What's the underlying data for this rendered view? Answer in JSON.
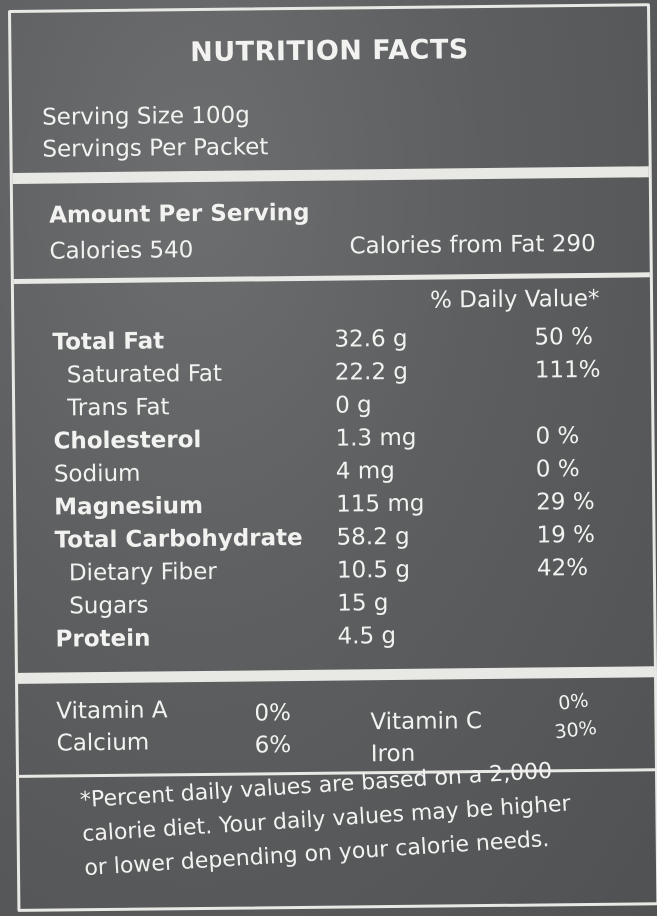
{
  "label": {
    "title": "NUTRITION FACTS",
    "serving_size": "Serving Size 100g",
    "servings_per_packet": "Servings Per Packet",
    "amount_per_serving": "Amount Per Serving",
    "calories": "Calories 540",
    "calories_from_fat": "Calories from Fat 290",
    "daily_value_header": "% Daily Value*",
    "nutrients": [
      {
        "name": "Total Fat",
        "amount": "32.6 g",
        "dv": "50 %"
      },
      {
        "name": "Saturated Fat",
        "amount": "22.2 g",
        "dv": "111%"
      },
      {
        "name": "Trans Fat",
        "amount": "0 g",
        "dv": ""
      },
      {
        "name": "Cholesterol",
        "amount": "1.3 mg",
        "dv": "0 %"
      },
      {
        "name": "Sodium",
        "amount": "4 mg",
        "dv": "0 %"
      },
      {
        "name": "Magnesium",
        "amount": "115 mg",
        "dv": "29 %"
      },
      {
        "name": "Total Carbohydrate",
        "amount": "58.2 g",
        "dv": "19 %"
      },
      {
        "name": "Dietary Fiber",
        "amount": "10.5 g",
        "dv": "42%"
      },
      {
        "name": "Sugars",
        "amount": "15 g",
        "dv": ""
      },
      {
        "name": "Protein",
        "amount": "4.5 g",
        "dv": ""
      }
    ],
    "vitamins": {
      "vitamin_a": "Vitamin A",
      "vitamin_a_dv": "0%",
      "calcium": "Calcium",
      "calcium_dv": "6%",
      "vitamin_c": "Vitamin C",
      "vitamin_c_dv": "0%",
      "iron": "Iron",
      "iron_dv": "30%"
    },
    "footnote": {
      "line1": "*Percent daily values are based on a 2,000",
      "line2": "calorie diet. Your daily values may be higher",
      "line3": "or lower depending on your calorie needs."
    }
  }
}
